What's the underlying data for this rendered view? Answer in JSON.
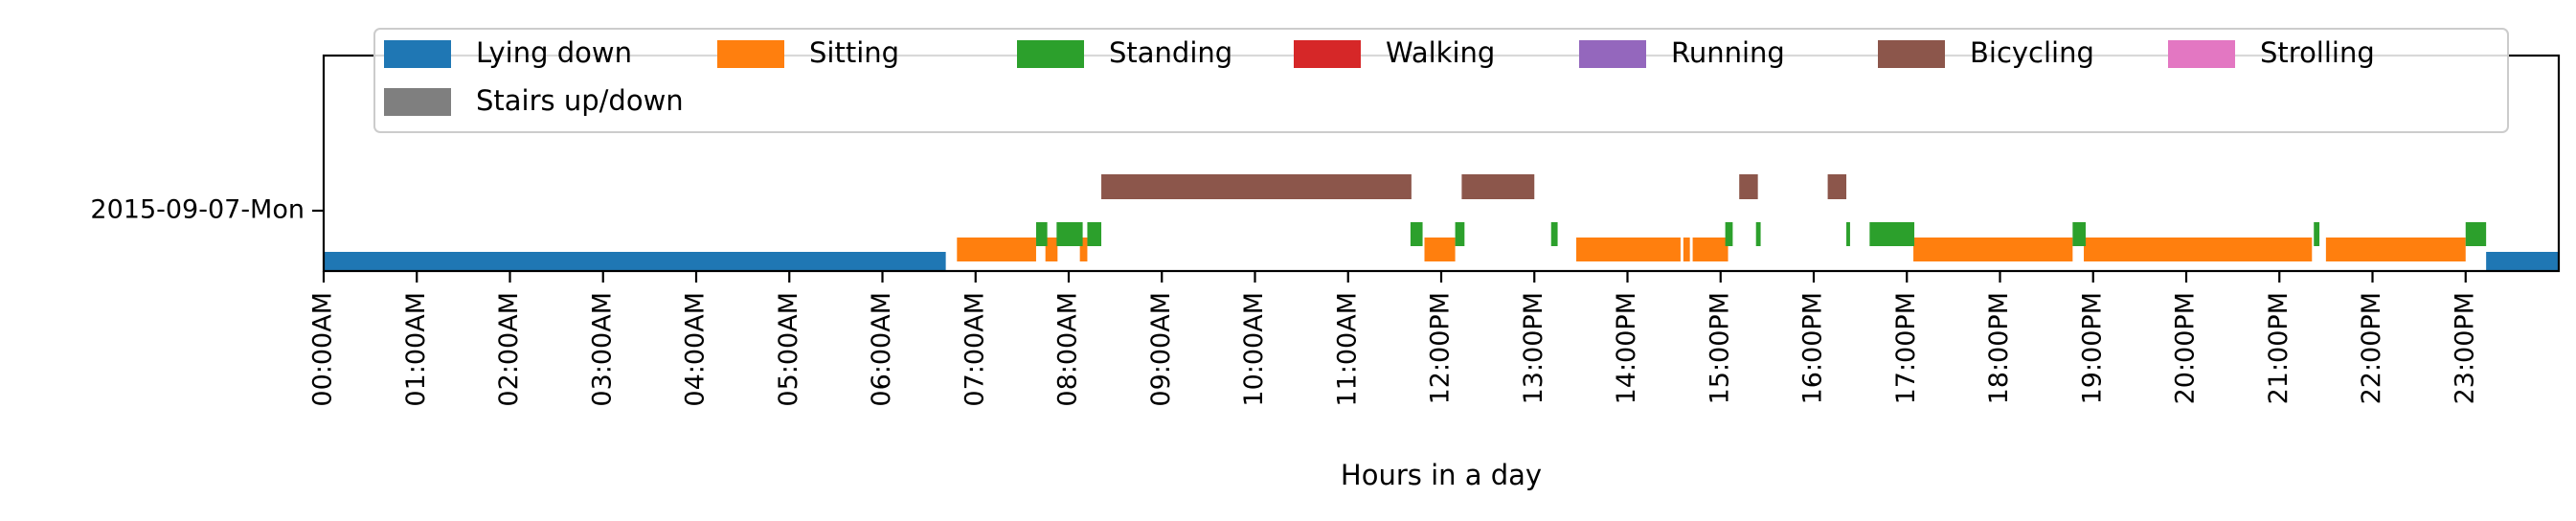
{
  "chart_data": {
    "type": "bar",
    "orientation": "horizontal-timeline",
    "title": "",
    "xlabel": "Hours in a day",
    "ylabel": "",
    "xlim": [
      0,
      24
    ],
    "grid": false,
    "legend_position": "top",
    "row_label": "2015-09-07-Mon",
    "tick_labels": [
      "00:00AM",
      "01:00AM",
      "02:00AM",
      "03:00AM",
      "04:00AM",
      "05:00AM",
      "06:00AM",
      "07:00AM",
      "08:00AM",
      "09:00AM",
      "10:00AM",
      "11:00AM",
      "12:00PM",
      "13:00PM",
      "14:00PM",
      "15:00PM",
      "16:00PM",
      "17:00PM",
      "18:00PM",
      "19:00PM",
      "20:00PM",
      "21:00PM",
      "22:00PM",
      "23:00PM"
    ],
    "series": [
      {
        "name": "Lying down",
        "color": "#1f77b4",
        "intervals": [
          [
            0.0,
            6.68
          ],
          [
            23.22,
            24.0
          ]
        ]
      },
      {
        "name": "Sitting",
        "color": "#ff7f0e",
        "intervals": [
          [
            6.8,
            7.65
          ],
          [
            7.75,
            7.88
          ],
          [
            8.12,
            8.2
          ],
          [
            11.82,
            12.15
          ],
          [
            13.45,
            14.57
          ],
          [
            14.6,
            14.67
          ],
          [
            14.7,
            15.08
          ],
          [
            17.07,
            18.78
          ],
          [
            18.9,
            21.35
          ],
          [
            21.5,
            23.0
          ]
        ]
      },
      {
        "name": "Standing",
        "color": "#2ca02c",
        "intervals": [
          [
            7.65,
            7.77
          ],
          [
            7.87,
            8.15
          ],
          [
            8.2,
            8.35
          ],
          [
            11.67,
            11.8
          ],
          [
            12.15,
            12.25
          ],
          [
            13.18,
            13.25
          ],
          [
            15.05,
            15.13
          ],
          [
            15.38,
            15.43
          ],
          [
            16.35,
            16.39
          ],
          [
            16.6,
            17.08
          ],
          [
            18.78,
            18.92
          ],
          [
            21.37,
            21.43
          ],
          [
            23.0,
            23.22
          ]
        ]
      },
      {
        "name": "Walking",
        "color": "#d62728",
        "intervals": []
      },
      {
        "name": "Running",
        "color": "#9467bd",
        "intervals": []
      },
      {
        "name": "Bicycling",
        "color": "#8c564b",
        "intervals": [
          [
            8.35,
            11.68
          ],
          [
            12.22,
            13.0
          ],
          [
            15.2,
            15.4
          ],
          [
            16.15,
            16.35
          ]
        ]
      },
      {
        "name": "Strolling",
        "color": "#e377c2",
        "intervals": []
      },
      {
        "name": "Stairs up/down",
        "color": "#7f7f7f",
        "intervals": []
      }
    ]
  }
}
